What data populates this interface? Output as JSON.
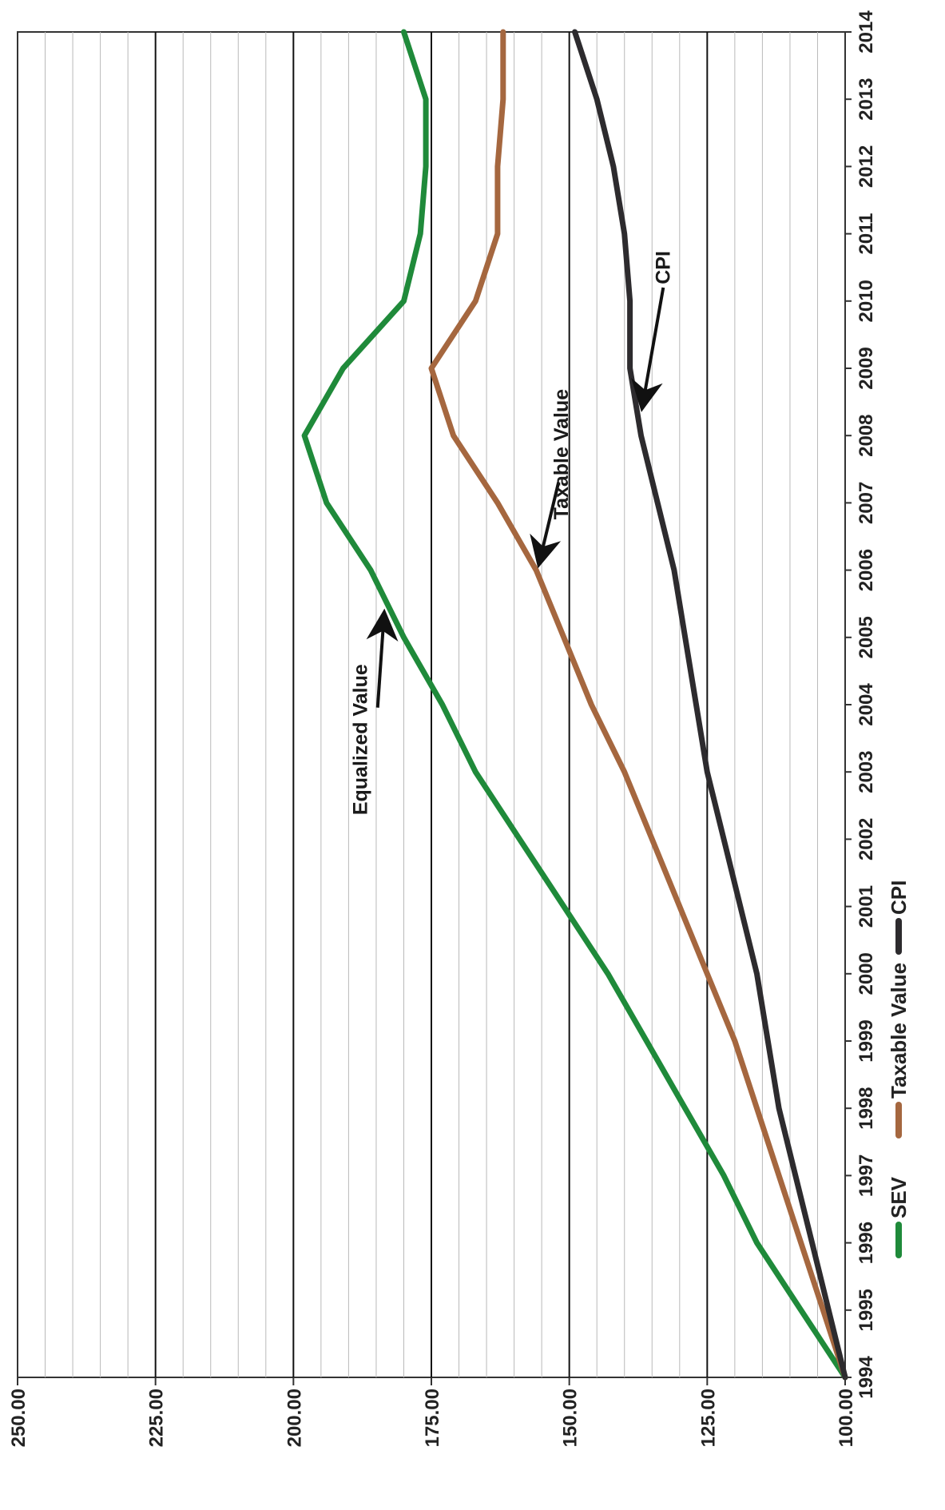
{
  "chart_data": {
    "type": "line",
    "x": [
      1994,
      1995,
      1996,
      1997,
      1998,
      1999,
      2000,
      2001,
      2002,
      2003,
      2004,
      2005,
      2006,
      2007,
      2008,
      2009,
      2010,
      2011,
      2012,
      2013,
      2014
    ],
    "x_tick_labels": [
      "1994",
      "1995",
      "1996",
      "1997",
      "1998",
      "1999",
      "2000",
      "2001",
      "2002",
      "2003",
      "2004",
      "2005",
      "2006",
      "2007",
      "2008",
      "2009",
      "2010",
      "2011",
      "2012",
      "2013",
      "2014"
    ],
    "y_tick_labels": [
      "100.00",
      "125.00",
      "150.00",
      "175.00",
      "200.00",
      "225.00",
      "250.00"
    ],
    "ylim": [
      100,
      250
    ],
    "xlim": [
      1994,
      2014
    ],
    "orientation": "rotated-90-clockwise",
    "grid": "horizontal major every 25, minor every 5",
    "legend_position": "bottom",
    "series": [
      {
        "name": "SEV",
        "color": "#1f8a3a",
        "values": [
          100,
          108,
          116,
          122,
          129,
          136,
          143,
          151,
          159,
          167,
          173,
          180,
          186,
          194,
          198,
          191,
          180,
          177,
          176,
          176,
          180
        ]
      },
      {
        "name": "Taxable Value",
        "color": "#a5673f",
        "values": [
          100,
          104,
          108,
          112,
          116,
          120,
          125,
          130,
          135,
          140,
          146,
          151,
          156,
          163,
          171,
          175,
          167,
          163,
          163,
          162,
          162
        ]
      },
      {
        "name": "CPI",
        "color": "#2d2b2e",
        "values": [
          100,
          103,
          106,
          109,
          112,
          114,
          116,
          119,
          122,
          125,
          127,
          129,
          131,
          134,
          137,
          139,
          139,
          140,
          142,
          145,
          149
        ]
      }
    ],
    "annotations": [
      {
        "text": "Equalized Value",
        "series": "SEV",
        "x": 2005.5
      },
      {
        "text": "Taxable Value",
        "series": "Taxable Value",
        "x": 2006
      },
      {
        "text": "CPI",
        "series": "CPI",
        "x": 2008.3
      }
    ]
  }
}
